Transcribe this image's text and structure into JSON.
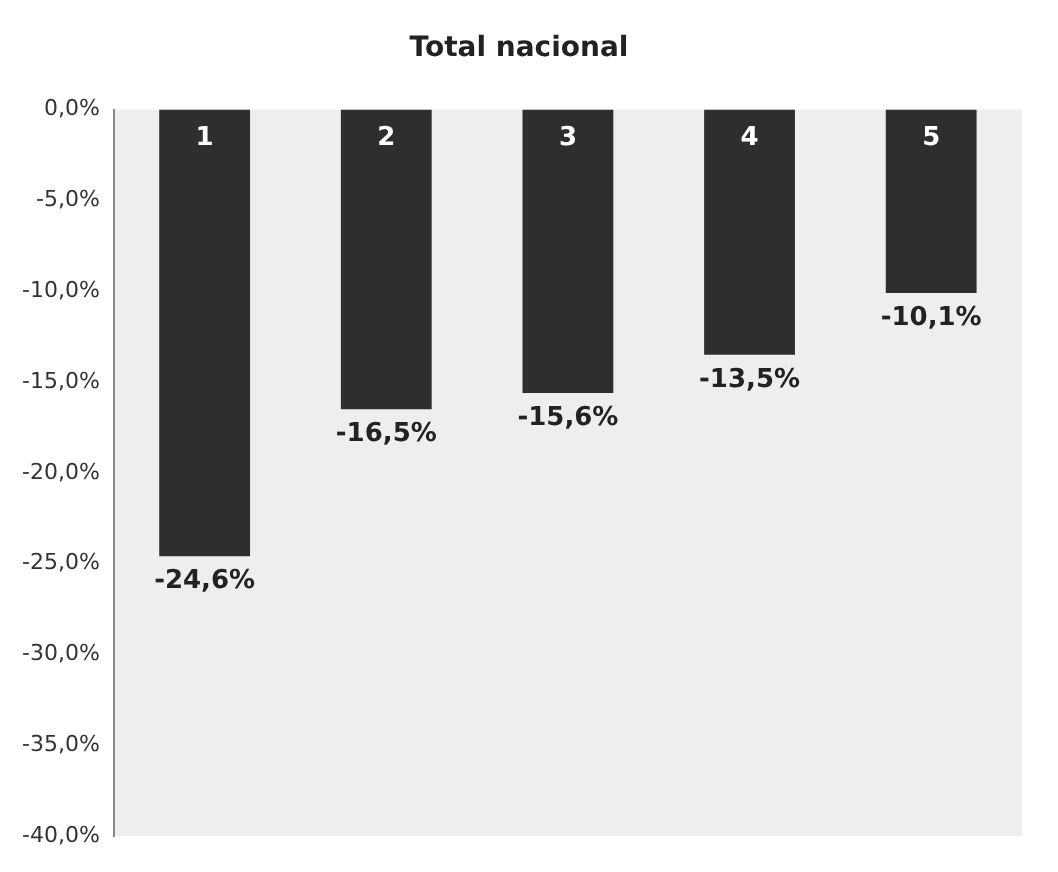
{
  "chart_data": {
    "type": "bar",
    "title": "Total nacional",
    "categories": [
      "1",
      "2",
      "3",
      "4",
      "5"
    ],
    "values": [
      -24.6,
      -16.5,
      -15.6,
      -13.5,
      -10.1
    ],
    "color": "#2e2e2e",
    "value_labels": [
      "-24,6%",
      "-16,5%",
      "-15,6%",
      "-13,5%",
      "-10,1%"
    ],
    "ylim": [
      -40,
      0
    ],
    "yticks": [
      {
        "value": 0,
        "label": "0,0%"
      },
      {
        "value": -5,
        "label": "-5,0%"
      },
      {
        "value": -10,
        "label": "-10,0%"
      },
      {
        "value": -15,
        "label": "-15,0%"
      },
      {
        "value": -20,
        "label": "-20,0%"
      },
      {
        "value": -25,
        "label": "-25,0%"
      },
      {
        "value": -30,
        "label": "-30,0%"
      },
      {
        "value": -35,
        "label": "-35,0%"
      },
      {
        "value": -40,
        "label": "-40,0%"
      }
    ],
    "grid": false,
    "legend": false
  }
}
